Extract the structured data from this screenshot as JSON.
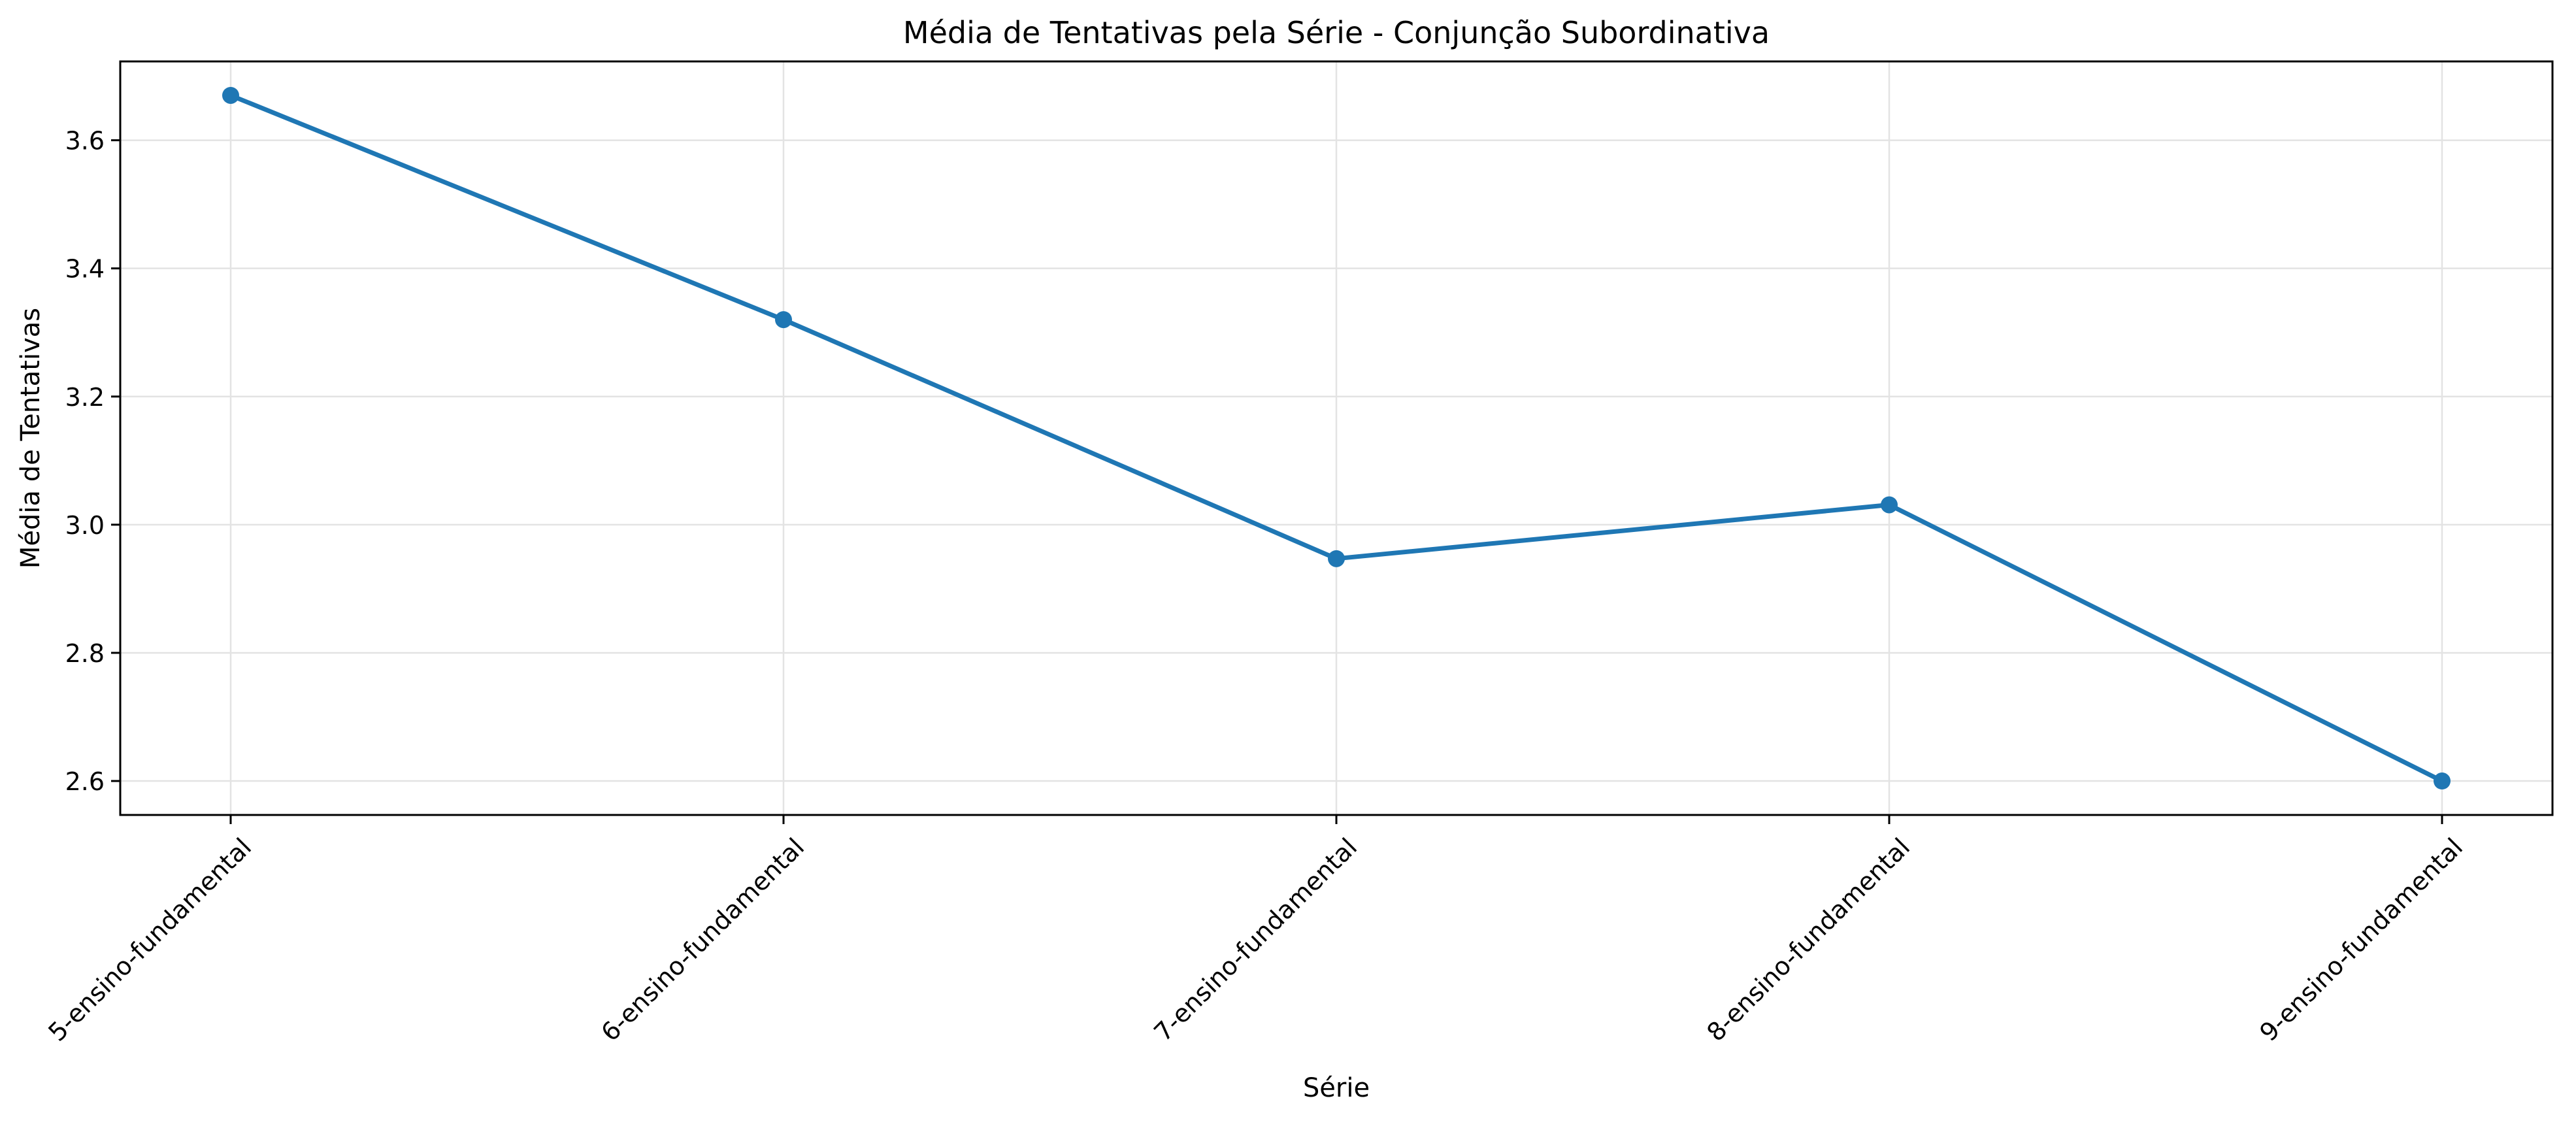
{
  "chart_data": {
    "type": "line",
    "title": "Média de Tentativas pela Série - Conjunção Subordinativa",
    "xlabel": "Série",
    "ylabel": "Média de Tentativas",
    "categories": [
      "5-ensino-fundamental",
      "6-ensino-fundamental",
      "7-ensino-fundamental",
      "8-ensino-fundamental",
      "9-ensino-fundamental"
    ],
    "series": [
      {
        "values": [
          3.67,
          3.32,
          2.947,
          3.031,
          2.6
        ],
        "color": "#1f77b4"
      }
    ],
    "ylim": [
      2.547,
      3.723
    ],
    "yticks": [
      "2.6",
      "2.8",
      "3.0",
      "3.2",
      "3.4",
      "3.6"
    ],
    "grid": true,
    "legend": "none",
    "x_tick_rotation": "45 degrees"
  }
}
